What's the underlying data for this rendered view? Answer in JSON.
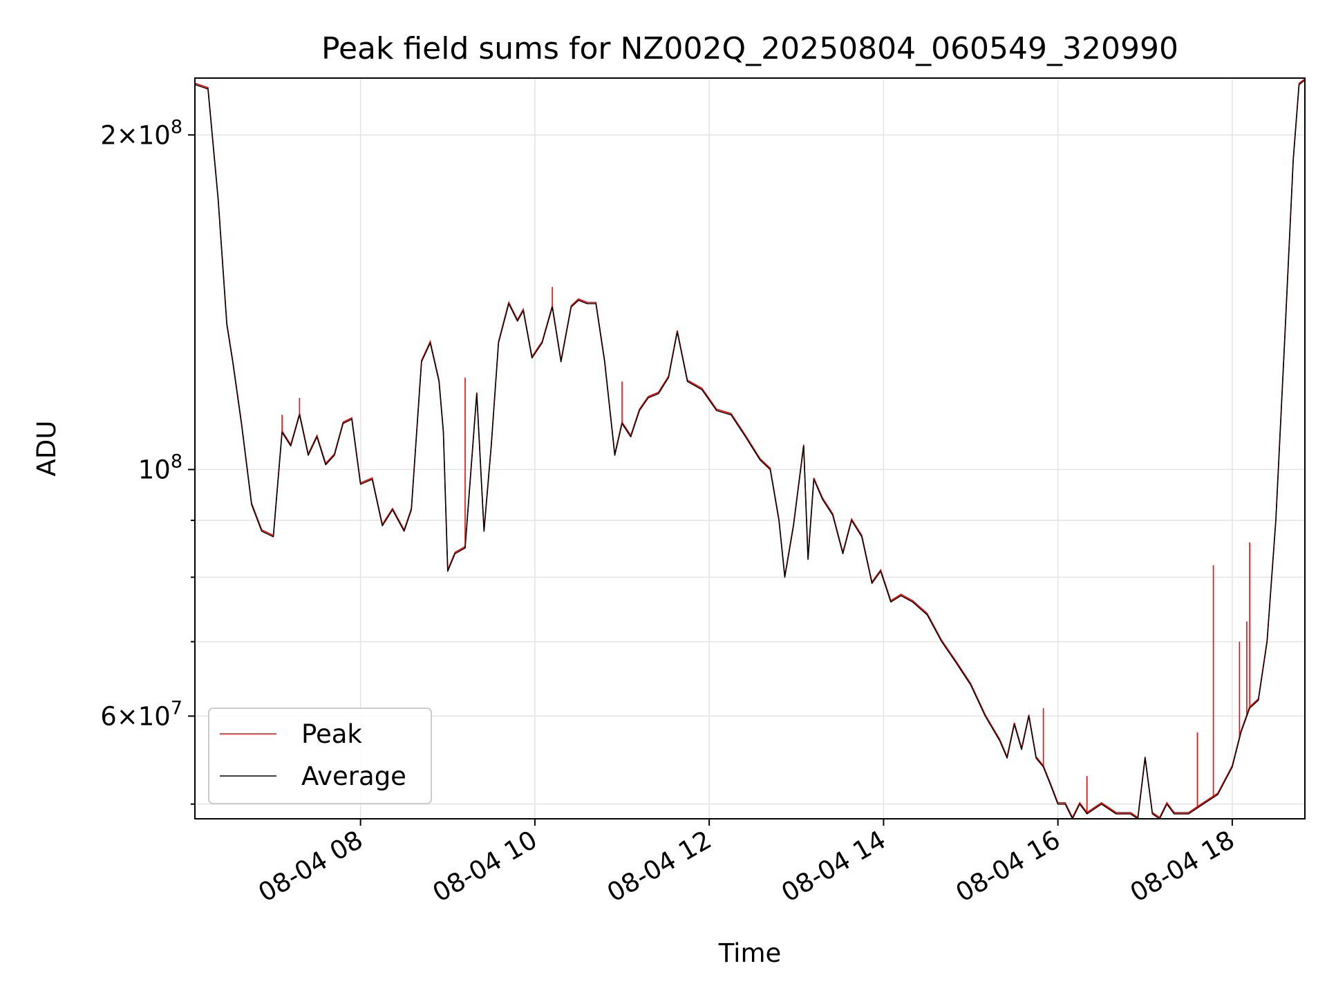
{
  "chart_data": {
    "type": "line",
    "title": "Peak field sums for NZ002Q_20250804_060549_320990",
    "xlabel": "Time",
    "ylabel": "ADU",
    "x_axis": {
      "kind": "datetime",
      "range": [
        "2025-08-04 06:06",
        "2025-08-04 18:50"
      ],
      "ticks": [
        "2025-08-04 08:00",
        "2025-08-04 10:00",
        "2025-08-04 12:00",
        "2025-08-04 14:00",
        "2025-08-04 16:00",
        "2025-08-04 18:00"
      ],
      "tick_labels": [
        "08-04 08",
        "08-04 10",
        "08-04 12",
        "08-04 14",
        "08-04 16",
        "08-04 18"
      ]
    },
    "y_axis": {
      "scale": "log",
      "range": [
        48500000,
        225000000
      ],
      "major_ticks": [
        60000000,
        100000000,
        200000000
      ],
      "major_tick_labels": [
        {
          "mant": "6",
          "op": "×",
          "base": "10",
          "exp": "7"
        },
        {
          "mant": "",
          "op": "",
          "base": "10",
          "exp": "8"
        },
        {
          "mant": "2",
          "op": "×",
          "base": "10",
          "exp": "8"
        }
      ],
      "minor_ticks": [
        50000000,
        70000000,
        80000000,
        90000000
      ]
    },
    "grid": true,
    "legend": {
      "placement": "lower-left",
      "entries": [
        "Peak",
        "Average"
      ]
    },
    "colors": {
      "Peak": "#ff0000",
      "Average": "#000000"
    },
    "series": [
      {
        "name": "Average",
        "color": "#000000",
        "x": [
          "2025-08-04 06:06",
          "2025-08-04 06:15",
          "2025-08-04 06:22",
          "2025-08-04 06:28",
          "2025-08-04 06:32",
          "2025-08-04 06:38",
          "2025-08-04 06:45",
          "2025-08-04 06:52",
          "2025-08-04 07:00",
          "2025-08-04 07:06",
          "2025-08-04 07:12",
          "2025-08-04 07:18",
          "2025-08-04 07:24",
          "2025-08-04 07:30",
          "2025-08-04 07:36",
          "2025-08-04 07:42",
          "2025-08-04 07:48",
          "2025-08-04 07:54",
          "2025-08-04 08:00",
          "2025-08-04 08:08",
          "2025-08-04 08:15",
          "2025-08-04 08:22",
          "2025-08-04 08:30",
          "2025-08-04 08:35",
          "2025-08-04 08:42",
          "2025-08-04 08:48",
          "2025-08-04 08:54",
          "2025-08-04 08:57",
          "2025-08-04 09:00",
          "2025-08-04 09:05",
          "2025-08-04 09:12",
          "2025-08-04 09:20",
          "2025-08-04 09:25",
          "2025-08-04 09:30",
          "2025-08-04 09:35",
          "2025-08-04 09:42",
          "2025-08-04 09:48",
          "2025-08-04 09:52",
          "2025-08-04 09:58",
          "2025-08-04 10:05",
          "2025-08-04 10:12",
          "2025-08-04 10:18",
          "2025-08-04 10:25",
          "2025-08-04 10:30",
          "2025-08-04 10:36",
          "2025-08-04 10:42",
          "2025-08-04 10:48",
          "2025-08-04 10:55",
          "2025-08-04 11:00",
          "2025-08-04 11:06",
          "2025-08-04 11:12",
          "2025-08-04 11:18",
          "2025-08-04 11:25",
          "2025-08-04 11:32",
          "2025-08-04 11:38",
          "2025-08-04 11:45",
          "2025-08-04 11:55",
          "2025-08-04 12:05",
          "2025-08-04 12:15",
          "2025-08-04 12:25",
          "2025-08-04 12:35",
          "2025-08-04 12:42",
          "2025-08-04 12:48",
          "2025-08-04 12:52",
          "2025-08-04 12:58",
          "2025-08-04 13:05",
          "2025-08-04 13:08",
          "2025-08-04 13:12",
          "2025-08-04 13:18",
          "2025-08-04 13:25",
          "2025-08-04 13:32",
          "2025-08-04 13:38",
          "2025-08-04 13:45",
          "2025-08-04 13:52",
          "2025-08-04 13:58",
          "2025-08-04 14:05",
          "2025-08-04 14:12",
          "2025-08-04 14:20",
          "2025-08-04 14:30",
          "2025-08-04 14:40",
          "2025-08-04 14:50",
          "2025-08-04 15:00",
          "2025-08-04 15:10",
          "2025-08-04 15:20",
          "2025-08-04 15:25",
          "2025-08-04 15:30",
          "2025-08-04 15:35",
          "2025-08-04 15:40",
          "2025-08-04 15:45",
          "2025-08-04 15:50",
          "2025-08-04 15:55",
          "2025-08-04 16:00",
          "2025-08-04 16:05",
          "2025-08-04 16:10",
          "2025-08-04 16:15",
          "2025-08-04 16:20",
          "2025-08-04 16:30",
          "2025-08-04 16:40",
          "2025-08-04 16:50",
          "2025-08-04 16:55",
          "2025-08-04 17:00",
          "2025-08-04 17:05",
          "2025-08-04 17:10",
          "2025-08-04 17:15",
          "2025-08-04 17:20",
          "2025-08-04 17:30",
          "2025-08-04 17:40",
          "2025-08-04 17:50",
          "2025-08-04 18:00",
          "2025-08-04 18:06",
          "2025-08-04 18:12",
          "2025-08-04 18:18",
          "2025-08-04 18:24",
          "2025-08-04 18:30",
          "2025-08-04 18:36",
          "2025-08-04 18:42",
          "2025-08-04 18:46",
          "2025-08-04 18:50"
        ],
        "y": [
          222000000,
          220000000,
          175000000,
          135000000,
          125000000,
          110000000,
          93000000,
          88000000,
          87000000,
          108000000,
          105000000,
          112000000,
          103000000,
          107000000,
          101000000,
          103000000,
          110000000,
          111000000,
          97000000,
          98000000,
          89000000,
          92000000,
          88000000,
          92000000,
          125000000,
          130000000,
          120000000,
          108000000,
          81000000,
          84000000,
          85000000,
          117000000,
          88000000,
          105000000,
          130000000,
          141000000,
          136000000,
          139000000,
          126000000,
          130000000,
          140000000,
          125000000,
          140000000,
          142000000,
          141000000,
          141000000,
          125000000,
          103000000,
          110000000,
          107000000,
          113000000,
          116000000,
          117000000,
          121000000,
          133000000,
          120000000,
          118000000,
          113000000,
          112000000,
          107000000,
          102000000,
          100000000,
          90000000,
          80000000,
          89000000,
          105000000,
          83000000,
          98000000,
          94000000,
          91000000,
          84000000,
          90000000,
          87000000,
          79000000,
          81000000,
          76000000,
          77000000,
          76000000,
          74000000,
          70000000,
          67000000,
          64000000,
          60000000,
          57000000,
          55000000,
          59000000,
          56000000,
          60000000,
          55000000,
          54000000,
          52000000,
          50000000,
          50000000,
          48500000,
          50000000,
          49000000,
          50000000,
          49000000,
          49000000,
          48500000,
          55000000,
          49000000,
          48500000,
          50000000,
          49000000,
          49000000,
          50000000,
          51000000,
          54000000,
          58000000,
          61000000,
          62000000,
          70000000,
          90000000,
          130000000,
          190000000,
          222000000,
          224000000
        ]
      },
      {
        "name": "Peak",
        "color": "#ff0000",
        "note_spikes": true,
        "spikes": [
          {
            "x": "2025-08-04 07:06",
            "y": 112000000
          },
          {
            "x": "2025-08-04 07:18",
            "y": 116000000
          },
          {
            "x": "2025-08-04 09:12",
            "y": 121000000
          },
          {
            "x": "2025-08-04 10:12",
            "y": 146000000
          },
          {
            "x": "2025-08-04 11:00",
            "y": 120000000
          },
          {
            "x": "2025-08-04 15:50",
            "y": 61000000
          },
          {
            "x": "2025-08-04 16:20",
            "y": 53000000
          },
          {
            "x": "2025-08-04 17:36",
            "y": 58000000
          },
          {
            "x": "2025-08-04 17:47",
            "y": 82000000
          },
          {
            "x": "2025-08-04 18:05",
            "y": 70000000
          },
          {
            "x": "2025-08-04 18:10",
            "y": 73000000
          },
          {
            "x": "2025-08-04 18:12",
            "y": 86000000
          }
        ]
      }
    ]
  }
}
